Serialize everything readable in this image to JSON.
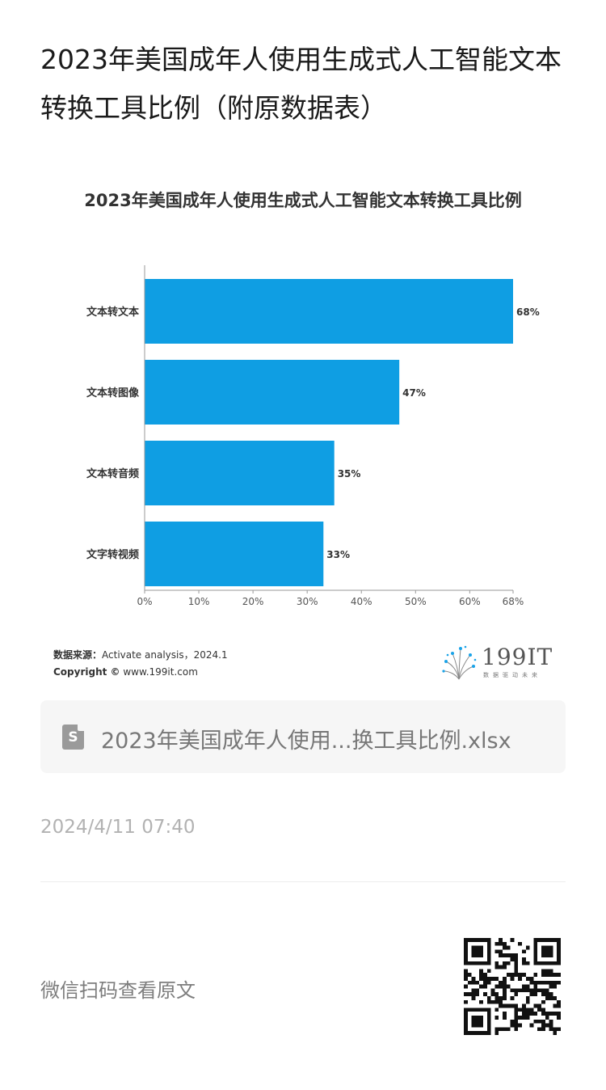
{
  "article": {
    "title": "2023年美国成年人使用生成式人工智能文本转换工具比例（附原数据表）"
  },
  "chart_data": {
    "type": "bar",
    "orientation": "horizontal",
    "title": "2023年美国成年人使用生成式人工智能文本转换工具比例",
    "categories": [
      "文本转文本",
      "文本转图像",
      "文本转音频",
      "文字转视频"
    ],
    "values": [
      68,
      47,
      35,
      33
    ],
    "value_labels": [
      "68%",
      "47%",
      "35%",
      "33%"
    ],
    "xlim": [
      0,
      68
    ],
    "x_ticks": [
      "0%",
      "10%",
      "20%",
      "30%",
      "40%",
      "50%",
      "60%",
      "68%"
    ],
    "x_tick_values": [
      0,
      10,
      20,
      30,
      40,
      50,
      60,
      68
    ],
    "bar_color": "#0f9ee3",
    "grid": false
  },
  "source": {
    "label": "数据来源：",
    "text": "Activate analysis，2024.1",
    "copyright_label": "Copyright ©",
    "copyright_text": " www.199it.com"
  },
  "brand": {
    "name": "199IT",
    "slogan": "数据驱动未来"
  },
  "attachment": {
    "icon": "spreadsheet-file-icon",
    "icon_letter": "S",
    "filename": "2023年美国成年人使用...换工具比例.xlsx"
  },
  "meta": {
    "timestamp": "2024/4/11 07:40",
    "scan_text": "微信扫码查看原文"
  }
}
